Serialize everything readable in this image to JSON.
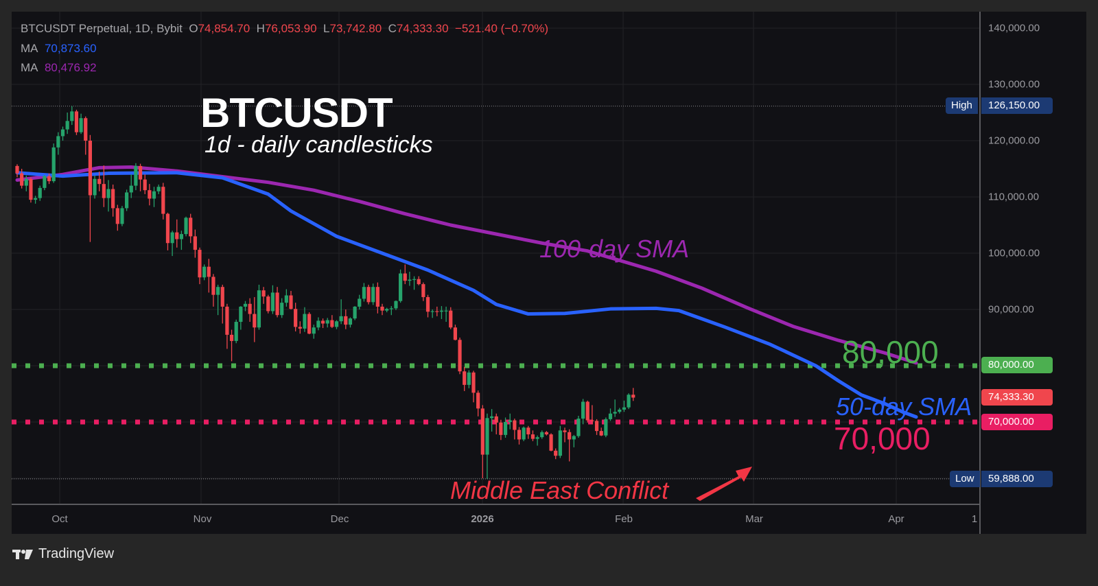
{
  "legend": {
    "symbol": "BTCUSDT Perpetual, 1D, Bybit",
    "open_label": "O",
    "open": "74,854.70",
    "high_label": "H",
    "high": "76,053.90",
    "low_label": "L",
    "low": "73,742.80",
    "close_label": "C",
    "close": "74,333.30",
    "change": "−521.40 (−0.70%)",
    "ma1_label": "MA",
    "ma1_value": "70,873.60",
    "ma2_label": "MA",
    "ma2_value": "80,476.92"
  },
  "title": "BTCUSDT",
  "subtitle": "1d - daily candlesticks",
  "annotations": {
    "sma100": "100-day SMA",
    "sma50": "50-day SMA",
    "level80": "80,000",
    "level70": "70,000",
    "event": "Middle East Conflict"
  },
  "price_axis": {
    "ticks": [
      "140,000.00",
      "130,000.00",
      "120,000.00",
      "110,000.00",
      "100,000.00",
      "90,000.00"
    ],
    "high_tag": "High",
    "high_value": "126,150.00",
    "low_tag": "Low",
    "low_value": "59,888.00",
    "level80_badge": "80,000.00",
    "last_price_badge": "74,333.30",
    "level70_badge": "70,000.00"
  },
  "time_axis": {
    "ticks": [
      "Oct",
      "Nov",
      "Dec",
      "2026",
      "Feb",
      "Mar",
      "Apr",
      "1"
    ]
  },
  "branding": "TradingView",
  "colors": {
    "up": "#26a36b",
    "down": "#f0464d",
    "sma50": "#2962ff",
    "sma100": "#9c27b0",
    "level80": "#4caf50",
    "level70": "#e91e63",
    "event": "#f23645",
    "badge_blue": "#1c3a73"
  },
  "chart_data": {
    "type": "candlestick",
    "title": "BTCUSDT",
    "subtitle": "1d - daily candlesticks",
    "xlabel": "",
    "ylabel": "",
    "ylim": [
      57000,
      143000
    ],
    "x_ticks": [
      "Oct",
      "Nov",
      "Dec",
      "2026",
      "Feb",
      "Mar",
      "Apr"
    ],
    "y_ticks": [
      90000,
      100000,
      110000,
      120000,
      130000,
      140000
    ],
    "horizontal_levels": [
      {
        "label": "80,000",
        "value": 80000,
        "color": "#4caf50",
        "style": "dotted"
      },
      {
        "label": "70,000",
        "value": 70000,
        "color": "#e91e63",
        "style": "dotted"
      }
    ],
    "high": 126150,
    "low": 59888,
    "last": 74333.3,
    "series": [
      {
        "name": "50-day SMA",
        "last": 70873.6
      },
      {
        "name": "100-day SMA",
        "last": 80476.92
      }
    ],
    "candles_start_date": "2025-09-20",
    "ohlc": [
      [
        115500,
        115800,
        113500,
        114200
      ],
      [
        114200,
        115000,
        111500,
        112000
      ],
      [
        112000,
        113800,
        111000,
        113200
      ],
      [
        113200,
        113500,
        109000,
        109500
      ],
      [
        109500,
        110200,
        108800,
        109800
      ],
      [
        109800,
        112000,
        109300,
        111600
      ],
      [
        111600,
        113900,
        111200,
        113700
      ],
      [
        113700,
        114200,
        112300,
        112800
      ],
      [
        112800,
        119500,
        112500,
        118800
      ],
      [
        118800,
        121500,
        117500,
        120800
      ],
      [
        120800,
        122500,
        120000,
        122000
      ],
      [
        122000,
        125000,
        121200,
        123500
      ],
      [
        123500,
        126150,
        122800,
        125200
      ],
      [
        125200,
        125500,
        121000,
        121500
      ],
      [
        121500,
        124800,
        121200,
        124000
      ],
      [
        124000,
        124300,
        117500,
        120000
      ],
      [
        120000,
        121000,
        102000,
        110300
      ],
      [
        110300,
        113800,
        109700,
        113200
      ],
      [
        113200,
        114500,
        111000,
        112300
      ],
      [
        112300,
        115600,
        108200,
        109800
      ],
      [
        109800,
        113000,
        107400,
        111400
      ],
      [
        111400,
        112200,
        106500,
        108000
      ],
      [
        108000,
        108600,
        104000,
        105200
      ],
      [
        105200,
        108400,
        104800,
        108000
      ],
      [
        108000,
        111300,
        107500,
        110800
      ],
      [
        110800,
        114000,
        109800,
        112000
      ],
      [
        112000,
        116000,
        111200,
        115500
      ],
      [
        115500,
        115900,
        111000,
        113100
      ],
      [
        113100,
        114000,
        110500,
        111200
      ],
      [
        111200,
        112300,
        108500,
        109700
      ],
      [
        109700,
        111800,
        108200,
        111000
      ],
      [
        111000,
        112200,
        110500,
        111800
      ],
      [
        111800,
        112500,
        106000,
        107000
      ],
      [
        107000,
        107200,
        100500,
        101800
      ],
      [
        101800,
        104000,
        99500,
        103700
      ],
      [
        103700,
        106000,
        101000,
        102500
      ],
      [
        102500,
        104000,
        100600,
        103400
      ],
      [
        103400,
        106500,
        103000,
        106300
      ],
      [
        106300,
        107000,
        101800,
        103000
      ],
      [
        103000,
        104200,
        99200,
        100600
      ],
      [
        100600,
        101000,
        94500,
        95700
      ],
      [
        95700,
        98000,
        95200,
        97600
      ],
      [
        97600,
        99000,
        93000,
        95800
      ],
      [
        95800,
        96300,
        90500,
        92600
      ],
      [
        92600,
        94400,
        89000,
        94000
      ],
      [
        94000,
        94400,
        87500,
        90500
      ],
      [
        90500,
        91000,
        83000,
        85500
      ],
      [
        85500,
        86400,
        80800,
        84400
      ],
      [
        84400,
        88200,
        84000,
        87800
      ],
      [
        87800,
        90600,
        86400,
        90500
      ],
      [
        90500,
        91500,
        89700,
        91000
      ],
      [
        91000,
        92000,
        87800,
        89200
      ],
      [
        89200,
        92200,
        84200,
        86800
      ],
      [
        86800,
        94400,
        86400,
        93400
      ],
      [
        93400,
        94000,
        91000,
        92300
      ],
      [
        92300,
        92600,
        89300,
        89700
      ],
      [
        89700,
        94300,
        89200,
        93000
      ],
      [
        93000,
        94000,
        88600,
        89000
      ],
      [
        89000,
        92000,
        88500,
        91200
      ],
      [
        91200,
        93600,
        90500,
        92500
      ],
      [
        92500,
        93300,
        90000,
        90100
      ],
      [
        90100,
        91200,
        86100,
        86900
      ],
      [
        86900,
        87900,
        85700,
        86600
      ],
      [
        86600,
        90400,
        86000,
        89200
      ],
      [
        89200,
        89500,
        85600,
        85700
      ],
      [
        85700,
        87300,
        84800,
        86800
      ],
      [
        86800,
        88600,
        86300,
        88000
      ],
      [
        88000,
        88400,
        86700,
        87500
      ],
      [
        87500,
        88500,
        86800,
        88100
      ],
      [
        88100,
        89000,
        86700,
        86900
      ],
      [
        86900,
        88100,
        86500,
        87900
      ],
      [
        87900,
        91800,
        87400,
        88800
      ],
      [
        88800,
        90000,
        86500,
        87300
      ],
      [
        87300,
        88600,
        86800,
        88400
      ],
      [
        88400,
        90600,
        88100,
        90500
      ],
      [
        90500,
        92600,
        90000,
        91900
      ],
      [
        91900,
        94700,
        91400,
        94000
      ],
      [
        94000,
        94400,
        90900,
        91300
      ],
      [
        91300,
        94600,
        90800,
        94000
      ],
      [
        94000,
        94800,
        89300,
        90500
      ],
      [
        90500,
        91000,
        89000,
        89800
      ],
      [
        89800,
        90300,
        89500,
        90100
      ],
      [
        90100,
        90600,
        89000,
        90200
      ],
      [
        90200,
        91600,
        89900,
        91500
      ],
      [
        91500,
        97100,
        91200,
        96400
      ],
      [
        96400,
        98000,
        94500,
        95100
      ],
      [
        95100,
        96700,
        94200,
        95300
      ],
      [
        95300,
        95900,
        93500,
        95400
      ],
      [
        95400,
        95900,
        94300,
        94500
      ],
      [
        94500,
        94800,
        91500,
        92200
      ],
      [
        92200,
        92600,
        88600,
        89600
      ],
      [
        89600,
        90000,
        88500,
        89700
      ],
      [
        89700,
        90500,
        88800,
        89600
      ],
      [
        89600,
        90600,
        88300,
        89800
      ],
      [
        89800,
        90500,
        87800,
        89800
      ],
      [
        89800,
        90400,
        86500,
        86800
      ],
      [
        86800,
        87300,
        84500,
        84600
      ],
      [
        84600,
        85000,
        78500,
        79000
      ],
      [
        79000,
        79800,
        75500,
        76600
      ],
      [
        76600,
        79200,
        76000,
        78800
      ],
      [
        78800,
        79100,
        73500,
        75200
      ],
      [
        75200,
        75600,
        71000,
        72400
      ],
      [
        72400,
        73000,
        60000,
        64200
      ],
      [
        64200,
        71500,
        59888,
        70700
      ],
      [
        70700,
        72300,
        68300,
        71000
      ],
      [
        71000,
        71500,
        67800,
        69900
      ],
      [
        69900,
        70400,
        66800,
        67700
      ],
      [
        67700,
        70800,
        67200,
        70000
      ],
      [
        70000,
        71500,
        68700,
        70300
      ],
      [
        70300,
        70600,
        66900,
        68600
      ],
      [
        68600,
        69100,
        66000,
        66900
      ],
      [
        66900,
        69200,
        66600,
        69000
      ],
      [
        69000,
        69300,
        67000,
        67800
      ],
      [
        67800,
        68500,
        66600,
        67000
      ],
      [
        67000,
        67600,
        65800,
        67300
      ],
      [
        67300,
        68500,
        67000,
        68200
      ],
      [
        68200,
        68400,
        67600,
        67800
      ],
      [
        67800,
        68000,
        64800,
        64900
      ],
      [
        64900,
        65300,
        63400,
        64000
      ],
      [
        64000,
        69300,
        63600,
        68500
      ],
      [
        68500,
        69000,
        66400,
        68200
      ],
      [
        68200,
        68700,
        63000,
        66900
      ],
      [
        66900,
        67700,
        65500,
        67500
      ],
      [
        67500,
        71100,
        67200,
        70600
      ],
      [
        70600,
        74100,
        69600,
        73600
      ],
      [
        73600,
        73800,
        69900,
        70300
      ],
      [
        70300,
        73000,
        69600,
        70200
      ],
      [
        70200,
        70500,
        67700,
        68400
      ],
      [
        68400,
        69000,
        67500,
        67600
      ],
      [
        67600,
        70800,
        67300,
        70500
      ],
      [
        70500,
        72400,
        70200,
        71500
      ],
      [
        71500,
        74000,
        70900,
        71800
      ],
      [
        71800,
        72500,
        71500,
        72200
      ],
      [
        72200,
        73800,
        71800,
        72600
      ],
      [
        72600,
        75100,
        72300,
        74850
      ],
      [
        74850,
        76054,
        73743,
        74333
      ]
    ],
    "sma50_points": [
      [
        0,
        114300
      ],
      [
        10,
        113700
      ],
      [
        20,
        114200
      ],
      [
        35,
        114300
      ],
      [
        45,
        113400
      ],
      [
        55,
        110500
      ],
      [
        60,
        107500
      ],
      [
        70,
        103000
      ],
      [
        80,
        100000
      ],
      [
        90,
        97000
      ],
      [
        100,
        93400
      ],
      [
        105,
        90900
      ],
      [
        112,
        89200
      ],
      [
        120,
        89300
      ],
      [
        125,
        89700
      ],
      [
        130,
        90100
      ],
      [
        140,
        90200
      ],
      [
        145,
        89800
      ],
      [
        155,
        86900
      ],
      [
        165,
        83800
      ],
      [
        175,
        80000
      ],
      [
        180,
        77300
      ],
      [
        185,
        74800
      ],
      [
        190,
        73300
      ],
      [
        194,
        71800
      ],
      [
        197,
        70900
      ]
    ],
    "sma100_points": [
      [
        0,
        113000
      ],
      [
        10,
        114000
      ],
      [
        18,
        115200
      ],
      [
        25,
        115300
      ],
      [
        35,
        114600
      ],
      [
        45,
        113600
      ],
      [
        55,
        112600
      ],
      [
        65,
        111200
      ],
      [
        75,
        109200
      ],
      [
        85,
        107000
      ],
      [
        95,
        105000
      ],
      [
        105,
        103400
      ],
      [
        115,
        101800
      ],
      [
        125,
        100400
      ],
      [
        130,
        99200
      ],
      [
        140,
        96800
      ],
      [
        150,
        93800
      ],
      [
        160,
        90300
      ],
      [
        170,
        87000
      ],
      [
        180,
        84500
      ],
      [
        190,
        82300
      ],
      [
        197,
        80500
      ]
    ]
  }
}
